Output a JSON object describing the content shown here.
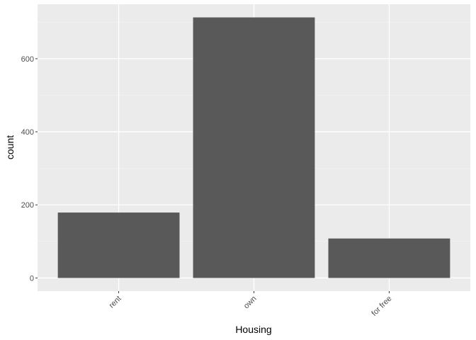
{
  "chart_data": {
    "type": "bar",
    "categories": [
      "rent",
      "own",
      "for free"
    ],
    "values": [
      179,
      713,
      108
    ],
    "xlabel": "Housing",
    "ylabel": "count",
    "ylim": [
      -36,
      749
    ],
    "yticks": [
      0,
      200,
      400,
      600
    ],
    "grid": true,
    "legend": "none",
    "colors": {
      "bar": "#595959",
      "panel": "#ebebeb",
      "grid_major": "#ffffff",
      "grid_minor": "#f2f2f2",
      "tick_text": "#4d4d4d",
      "tick_mark": "#333333"
    }
  }
}
